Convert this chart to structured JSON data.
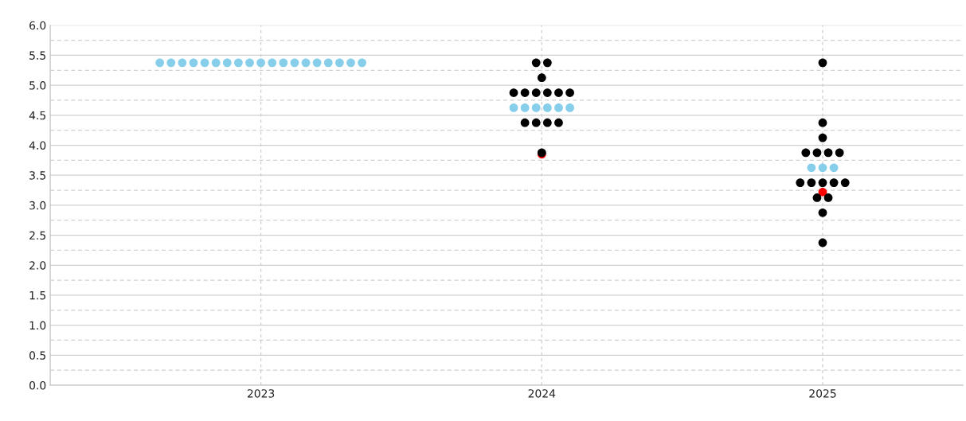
{
  "chart_data": {
    "type": "scatter",
    "xlim": [
      2022.25,
      2025.5
    ],
    "xticks": [
      2023,
      2024,
      2025
    ],
    "marker": "circle",
    "grid": true,
    "ylim": [
      0,
      6
    ],
    "yticks": [
      {
        "value": 0,
        "label": "0.0"
      },
      {
        "value": 0.25,
        "label": null
      },
      {
        "value": 0.5,
        "label": "0.5"
      },
      {
        "value": 0.75,
        "label": null
      },
      {
        "value": 1.0,
        "label": "1.0"
      },
      {
        "value": 1.25,
        "label": null
      },
      {
        "value": 1.5,
        "label": "1.5"
      },
      {
        "value": 1.75,
        "label": null
      },
      {
        "value": 2.0,
        "label": "2.0"
      },
      {
        "value": 2.25,
        "label": null
      },
      {
        "value": 2.5,
        "label": "2.5"
      },
      {
        "value": 2.75,
        "label": null
      },
      {
        "value": 3.0,
        "label": "3.0"
      },
      {
        "value": 3.25,
        "label": null
      },
      {
        "value": 3.5,
        "label": "3.5"
      },
      {
        "value": 3.75,
        "label": null
      },
      {
        "value": 4.0,
        "label": "4.0"
      },
      {
        "value": 4.25,
        "label": null
      },
      {
        "value": 4.5,
        "label": "4.5"
      },
      {
        "value": 4.75,
        "label": null
      },
      {
        "value": 5.0,
        "label": "5.0"
      },
      {
        "value": 5.25,
        "label": null
      },
      {
        "value": 5.5,
        "label": "5.5"
      },
      {
        "value": 5.75,
        "label": null
      },
      {
        "value": 6.0,
        "label": "6.0"
      }
    ],
    "series": [
      {
        "color": "#ff0000",
        "x": [
          2024,
          2025
        ],
        "values": [
          3.85,
          3.22
        ]
      },
      {
        "color": "#000000",
        "x": [
          2023.98,
          2024.02,
          2024,
          2023.9,
          2023.94,
          2023.98,
          2024.02,
          2024.06,
          2024.1,
          2023.94,
          2023.98,
          2024.02,
          2024.06,
          2024,
          2025,
          2025,
          2025,
          2024.94,
          2024.98,
          2025.02,
          2025.06,
          2024.92,
          2024.96,
          2025,
          2025.04,
          2025.08,
          2024.98,
          2025.02,
          2025,
          2025
        ],
        "values": [
          5.375,
          5.375,
          5.125,
          4.875,
          4.875,
          4.875,
          4.875,
          4.875,
          4.875,
          4.375,
          4.375,
          4.375,
          4.375,
          3.875,
          5.375,
          4.375,
          4.125,
          3.875,
          3.875,
          3.875,
          3.875,
          3.375,
          3.375,
          3.375,
          3.375,
          3.375,
          3.125,
          3.125,
          2.875,
          2.375
        ]
      },
      {
        "color": "#87ceeb",
        "x": [
          2022.64,
          2022.68,
          2022.72,
          2022.76,
          2022.8,
          2022.84,
          2022.88,
          2022.92,
          2022.96,
          2023,
          2023.04,
          2023.08,
          2023.12,
          2023.16,
          2023.2,
          2023.24,
          2023.28,
          2023.32,
          2023.36,
          2023.9,
          2023.94,
          2023.98,
          2024.02,
          2024.06,
          2024.1,
          2024.96,
          2025,
          2025.04
        ],
        "values": [
          5.375,
          5.375,
          5.375,
          5.375,
          5.375,
          5.375,
          5.375,
          5.375,
          5.375,
          5.375,
          5.375,
          5.375,
          5.375,
          5.375,
          5.375,
          5.375,
          5.375,
          5.375,
          5.375,
          4.625,
          4.625,
          4.625,
          4.625,
          4.625,
          4.625,
          3.625,
          3.625,
          3.625
        ]
      }
    ]
  }
}
